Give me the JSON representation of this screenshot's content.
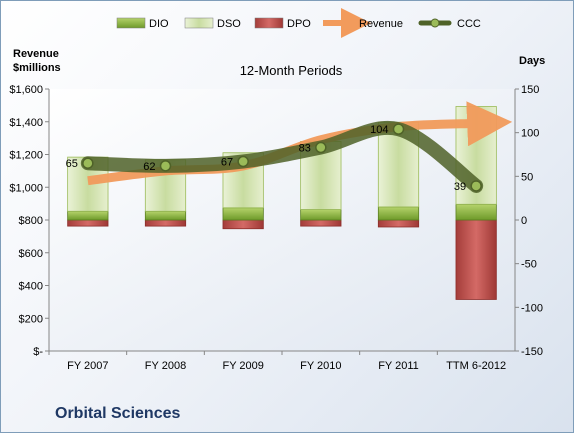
{
  "company": "Orbital Sciences",
  "chart_data": {
    "type": "bar",
    "title": "12-Month Periods",
    "categories": [
      "FY 2007",
      "FY 2008",
      "FY 2009",
      "FY 2010",
      "FY 2011",
      "TTM 6-2012"
    ],
    "left_axis": {
      "label_line1": "Revenue",
      "label_line2": "$millions",
      "ylim": [
        0,
        1600
      ],
      "ticks": [
        0,
        200,
        400,
        600,
        800,
        1000,
        1200,
        1400,
        1600
      ],
      "tick_labels": [
        "$-",
        "$200",
        "$400",
        "$600",
        "$800",
        "$1,000",
        "$1,200",
        "$1,400",
        "$1,600"
      ]
    },
    "right_axis": {
      "label": "Days",
      "ylim": [
        -150,
        150
      ],
      "ticks": [
        -150,
        -100,
        -50,
        0,
        50,
        100,
        150
      ],
      "tick_labels": [
        "-150",
        "-100",
        "-50",
        "0",
        "50",
        "100",
        "150"
      ]
    },
    "series": [
      {
        "name": "DIO",
        "axis": "right",
        "kind": "stacked-bar",
        "color": "#8fb83f",
        "values": [
          10,
          10,
          14,
          12,
          15,
          18
        ]
      },
      {
        "name": "DSO",
        "axis": "right",
        "kind": "stacked-bar",
        "color": "#d7e4bd",
        "values": [
          62,
          59,
          63,
          78,
          97,
          112
        ]
      },
      {
        "name": "DPO",
        "axis": "right",
        "kind": "bar-negative",
        "color": "#c0504d",
        "values": [
          -7,
          -7,
          -10,
          -7,
          -8,
          -91
        ]
      },
      {
        "name": "Revenue",
        "axis": "left",
        "kind": "line",
        "color": "#f29b5c",
        "values": [
          1040,
          1100,
          1130,
          1290,
          1370,
          1390
        ]
      },
      {
        "name": "CCC",
        "axis": "right",
        "kind": "line",
        "color": "#6b8e23",
        "values": [
          65,
          62,
          67,
          83,
          104,
          39
        ],
        "data_labels": [
          "65",
          "62",
          "67",
          "83",
          "104",
          "39"
        ]
      }
    ],
    "legend_position": "top",
    "grid": false
  }
}
